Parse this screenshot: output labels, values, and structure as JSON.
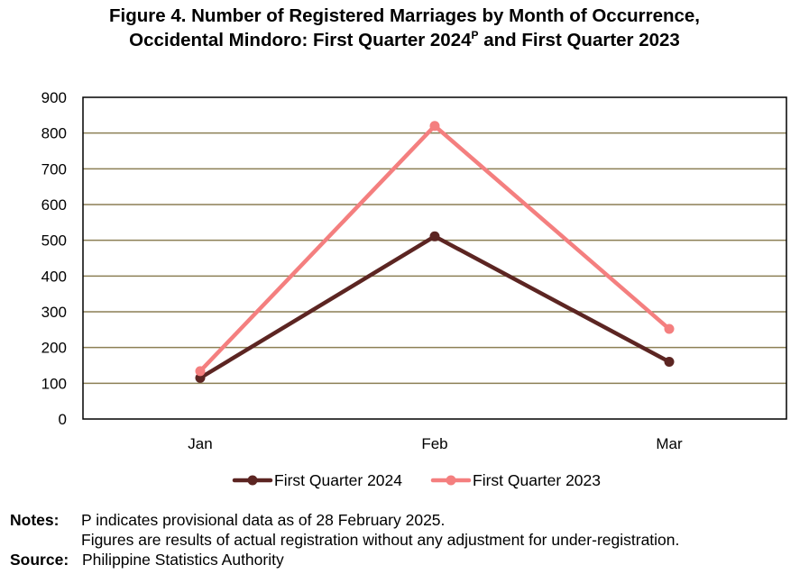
{
  "chart_data": {
    "type": "line",
    "title_line1": "Figure 4. Number of Registered Marriages by Month of Occurrence,",
    "title_line2": "Occidental Mindoro: First Quarter 2024",
    "title_superscript": "P",
    "title_line2_end": "and First Quarter 2023",
    "categories": [
      "Jan",
      "Feb",
      "Mar"
    ],
    "ylim": [
      0,
      900
    ],
    "yticks": [
      "0",
      "100",
      "200",
      "300",
      "400",
      "500",
      "600",
      "700",
      "800",
      "900"
    ],
    "grid": true,
    "legend_position": "bottom",
    "series": [
      {
        "name": "First Quarter 2024",
        "values": [
          115,
          511,
          160
        ],
        "color": "#5c2522"
      },
      {
        "name": "First Quarter 2023",
        "values": [
          134,
          820,
          252
        ],
        "color": "#f47f7f"
      }
    ],
    "gridline_color": "#8c7f55"
  },
  "notes": {
    "label": "Notes:",
    "line1": "P indicates provisional data as of 28 February 2025.",
    "line2": "Figures are results of actual registration without any adjustment for under-registration."
  },
  "source": {
    "label": "Source:",
    "text": "Philippine Statistics Authority"
  }
}
